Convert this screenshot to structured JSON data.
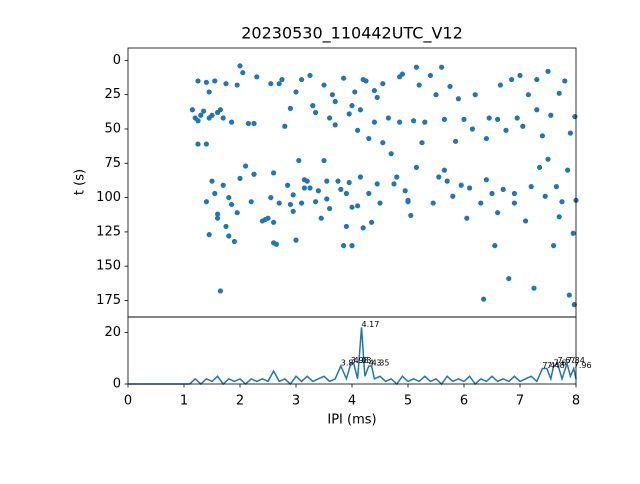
{
  "chart_data": [
    {
      "type": "scatter",
      "title": "20230530_110442UTC_V12",
      "ylabel": "t (s)",
      "color": "#1f77b4",
      "xlim": [
        0,
        8
      ],
      "ylim": [
        187,
        -9
      ],
      "yticks": [
        0,
        25,
        50,
        75,
        100,
        125,
        150,
        175
      ],
      "x": [
        1.15,
        1.2,
        1.25,
        1.3,
        1.35,
        1.4,
        1.45,
        1.5,
        1.55,
        1.6,
        1.65,
        1.7,
        1.75,
        1.25,
        1.4,
        1.25,
        1.45,
        1.5,
        1.55,
        1.6,
        1.65,
        1.7,
        1.8,
        1.85,
        1.9,
        1.95,
        1.45,
        1.4,
        1.75,
        1.8,
        1.6,
        1.85,
        1.95,
        2.0,
        2.05,
        2.1,
        2.0,
        2.15,
        2.3,
        2.25,
        2.4,
        2.5,
        2.55,
        2.6,
        2.55,
        2.6,
        2.65,
        2.7,
        2.6,
        2.75,
        2.8,
        2.85,
        2.9,
        2.95,
        3.0,
        3.05,
        3.1,
        3.2,
        3.25,
        3.3,
        3.35,
        3.15,
        3.4,
        3.45,
        3.5,
        3.55,
        3.6,
        3.65,
        3.7,
        3.75,
        3.8,
        3.85,
        3.9,
        3.95,
        4.0,
        3.95,
        4.0,
        4.05,
        4.1,
        4.15,
        4.1,
        4.2,
        4.25,
        4.3,
        4.35,
        4.4,
        4.45,
        4.5,
        4.55,
        4.4,
        4.15,
        4.2,
        4.3,
        4.45,
        3.6,
        3.7,
        3.9,
        4.0,
        3.85,
        3.5,
        3.25,
        3.0,
        2.9,
        3.1,
        4.7,
        4.8,
        4.85,
        4.95,
        5.0,
        5.05,
        5.1,
        5.15,
        5.2,
        5.3,
        5.4,
        5.5,
        5.55,
        5.6,
        5.65,
        5.7,
        5.75,
        5.8,
        5.9,
        5.95,
        6.0,
        6.05,
        6.1,
        6.15,
        6.2,
        6.3,
        6.35,
        6.4,
        6.45,
        6.5,
        6.55,
        6.6,
        6.65,
        6.7,
        6.75,
        6.8,
        6.85,
        6.9,
        6.95,
        7.0,
        7.05,
        7.1,
        7.15,
        7.2,
        7.25,
        7.3,
        7.35,
        7.4,
        7.45,
        7.5,
        7.55,
        7.6,
        7.65,
        7.7,
        7.75,
        7.8,
        7.85,
        7.9,
        7.95,
        7.98,
        8.0,
        7.97,
        7.88,
        7.7,
        7.5,
        7.3,
        6.9,
        6.6,
        6.4,
        5.85,
        5.65,
        5.45,
        5.25,
        5.15,
        4.9,
        4.65,
        4.55,
        4.75,
        4.85,
        5.0,
        3.55,
        3.35,
        3.15,
        2.95,
        2.7,
        2.45,
        2.25,
        2.2
      ],
      "values": [
        36,
        42,
        15,
        40,
        37,
        16,
        23,
        40,
        15,
        38,
        36,
        42,
        17,
        61,
        61,
        44,
        42,
        88,
        97,
        112,
        168,
        91,
        100,
        105,
        132,
        111,
        127,
        103,
        121,
        128,
        115,
        45,
        18,
        4,
        9,
        77,
        86,
        46,
        12,
        46,
        117,
        115,
        17,
        82,
        100,
        133,
        134,
        104,
        118,
        14,
        48,
        91,
        105,
        110,
        131,
        73,
        104,
        88,
        93,
        33,
        38,
        87,
        95,
        115,
        73,
        101,
        108,
        25,
        47,
        88,
        94,
        13,
        97,
        89,
        107,
        39,
        33,
        23,
        51,
        85,
        106,
        14,
        15,
        97,
        118,
        45,
        27,
        104,
        17,
        22,
        36,
        122,
        57,
        90,
        42,
        30,
        121,
        135,
        135,
        18,
        11,
        23,
        35,
        14,
        68,
        85,
        12,
        95,
        103,
        113,
        44,
        5,
        18,
        45,
        11,
        25,
        85,
        5,
        43,
        88,
        19,
        99,
        28,
        91,
        43,
        115,
        93,
        50,
        25,
        104,
        174,
        57,
        42,
        97,
        135,
        111,
        18,
        94,
        51,
        159,
        14,
        104,
        42,
        11,
        48,
        117,
        25,
        92,
        166,
        14,
        78,
        55,
        99,
        8,
        40,
        135,
        92,
        24,
        103,
        15,
        80,
        53,
        126,
        41,
        102,
        178,
        171,
        114,
        72,
        36,
        97,
        43,
        87,
        59,
        80,
        104,
        60,
        78,
        10,
        42,
        60,
        90,
        45,
        102,
        88,
        103,
        93,
        98,
        17,
        116,
        83,
        103
      ]
    },
    {
      "type": "line",
      "xlabel": "IPI (ms)",
      "color": "#1f77b4",
      "xlim": [
        0,
        8
      ],
      "ylim": [
        0,
        26
      ],
      "xticks": [
        0,
        1,
        2,
        3,
        4,
        5,
        6,
        7,
        8
      ],
      "yticks": [
        0,
        20
      ],
      "x": [
        0,
        1.0,
        1.1,
        1.2,
        1.3,
        1.4,
        1.5,
        1.6,
        1.7,
        1.8,
        1.9,
        2.0,
        2.1,
        2.2,
        2.3,
        2.4,
        2.5,
        2.6,
        2.7,
        2.8,
        2.9,
        3.0,
        3.1,
        3.2,
        3.3,
        3.4,
        3.5,
        3.6,
        3.7,
        3.8,
        3.9,
        3.98,
        4.03,
        4.1,
        4.17,
        4.23,
        4.3,
        4.35,
        4.4,
        4.5,
        4.6,
        4.7,
        4.8,
        4.9,
        5.0,
        5.1,
        5.2,
        5.3,
        5.4,
        5.5,
        5.6,
        5.7,
        5.8,
        5.9,
        6.0,
        6.1,
        6.2,
        6.3,
        6.4,
        6.5,
        6.6,
        6.7,
        6.8,
        6.9,
        7.0,
        7.1,
        7.2,
        7.3,
        7.4,
        7.48,
        7.55,
        7.6,
        7.67,
        7.75,
        7.84,
        7.9,
        7.96,
        8.0
      ],
      "values": [
        0,
        0,
        0,
        2,
        0,
        2,
        1,
        3,
        0,
        2,
        1,
        2,
        0,
        2,
        1,
        2,
        1,
        5,
        1,
        2,
        0,
        3,
        1,
        3,
        1,
        2,
        3,
        1,
        2,
        7,
        2,
        8,
        8,
        2,
        22,
        3,
        7,
        7,
        2,
        3,
        1,
        2,
        0,
        3,
        1,
        2,
        1,
        3,
        1,
        2,
        0,
        3,
        1,
        2,
        1,
        3,
        0,
        2,
        1,
        3,
        1,
        2,
        1,
        3,
        1,
        2,
        3,
        1,
        6,
        6,
        2,
        7,
        8,
        2,
        8,
        3,
        6,
        2
      ],
      "annotations": [
        {
          "x": 3.8,
          "y": 7,
          "label": "3.8"
        },
        {
          "x": 3.98,
          "y": 8,
          "label": "3.98"
        },
        {
          "x": 4.03,
          "y": 8,
          "label": "4.03"
        },
        {
          "x": 4.17,
          "y": 22,
          "label": "4.17"
        },
        {
          "x": 4.3,
          "y": 7,
          "label": "4.3"
        },
        {
          "x": 4.35,
          "y": 7,
          "label": "4.35"
        },
        {
          "x": 7.4,
          "y": 6,
          "label": "7.4"
        },
        {
          "x": 7.48,
          "y": 6,
          "label": "7.48"
        },
        {
          "x": 7.6,
          "y": 7,
          "label": "7.6"
        },
        {
          "x": 7.67,
          "y": 8,
          "label": "7.67"
        },
        {
          "x": 7.84,
          "y": 8,
          "label": "7.84"
        },
        {
          "x": 7.96,
          "y": 6,
          "label": "7.96"
        }
      ]
    }
  ]
}
